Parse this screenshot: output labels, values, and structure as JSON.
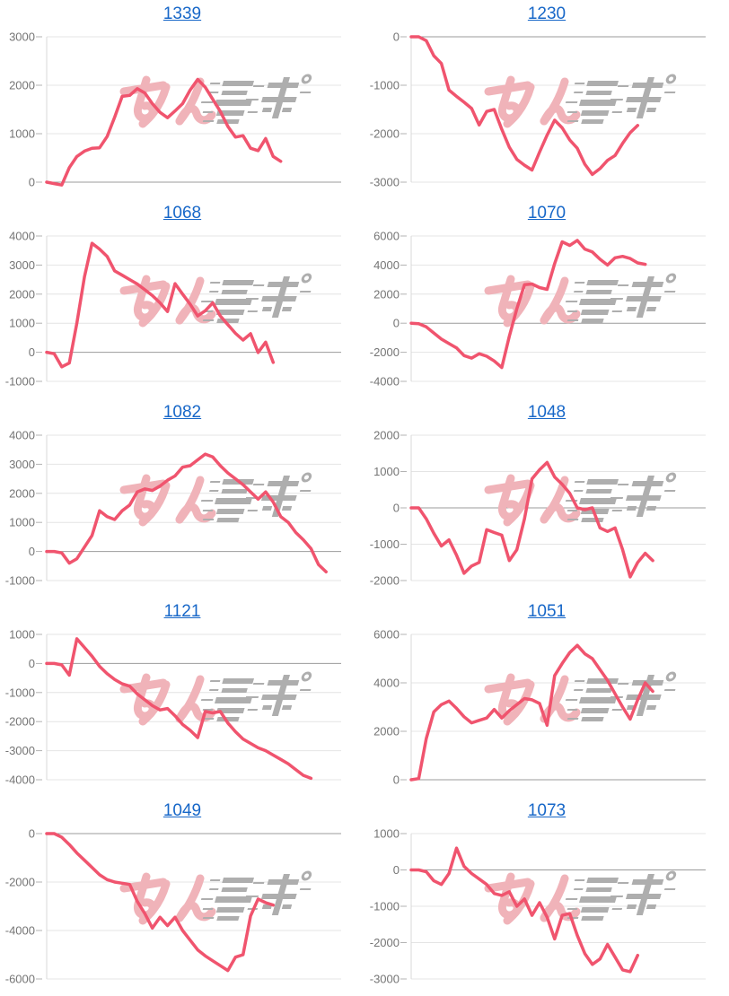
{
  "page": {
    "description": "Grid of 10 daily slot machine payout line graphs, each titled by machine number link",
    "watermark_logo": "minrepo-site-logo"
  },
  "colors": {
    "background": "#ffffff",
    "link": "#1767c8",
    "series_line": "#f0546e",
    "grid_line": "#e4e4e4",
    "zero_line": "#9b9b9b",
    "axis_line": "#d9d9d9",
    "tick_mark": "#b3b3b3",
    "tick_label": "#757575",
    "watermark_pink": "#f0b3b9",
    "watermark_gray": "#aeaeae"
  },
  "layout_hints": {
    "columns": 2,
    "rows": 5,
    "x_days_max": 40,
    "grid_on": true,
    "legend": "none",
    "x_axis_labels": "none"
  },
  "chart_data": [
    {
      "type": "line",
      "title": "1339",
      "ylim": [
        0,
        3000
      ],
      "yticks": [
        0,
        1000,
        2000,
        3000
      ],
      "values": [
        0,
        -30,
        -60,
        300,
        530,
        640,
        700,
        710,
        940,
        1340,
        1770,
        1790,
        1930,
        1840,
        1620,
        1440,
        1330,
        1470,
        1620,
        1900,
        2120,
        1960,
        1710,
        1460,
        1150,
        930,
        960,
        700,
        650,
        900,
        530,
        430
      ]
    },
    {
      "type": "line",
      "title": "1230",
      "ylim": [
        -3000,
        0
      ],
      "yticks": [
        0,
        -1000,
        -2000,
        -3000
      ],
      "values": [
        0,
        0,
        -80,
        -390,
        -550,
        -1100,
        -1230,
        -1350,
        -1480,
        -1820,
        -1540,
        -1500,
        -1910,
        -2280,
        -2530,
        -2650,
        -2750,
        -2380,
        -2030,
        -1720,
        -1880,
        -2130,
        -2300,
        -2630,
        -2840,
        -2720,
        -2550,
        -2450,
        -2200,
        -1980,
        -1830
      ]
    },
    {
      "type": "line",
      "title": "1068",
      "ylim": [
        -1000,
        4000
      ],
      "yticks": [
        -1000,
        0,
        1000,
        2000,
        3000,
        4000
      ],
      "values": [
        0,
        -50,
        -500,
        -370,
        1000,
        2600,
        3750,
        3550,
        3300,
        2800,
        2650,
        2500,
        2350,
        2150,
        1950,
        1700,
        1400,
        2360,
        2000,
        1650,
        1250,
        1430,
        1700,
        1250,
        950,
        650,
        420,
        640,
        -10,
        350,
        -350
      ]
    },
    {
      "type": "line",
      "title": "1070",
      "ylim": [
        -4000,
        6000
      ],
      "yticks": [
        -4000,
        -2000,
        0,
        2000,
        4000,
        6000
      ],
      "values": [
        0,
        -40,
        -250,
        -670,
        -1090,
        -1400,
        -1700,
        -2230,
        -2400,
        -2100,
        -2270,
        -2600,
        -3050,
        -900,
        1000,
        2650,
        2700,
        2450,
        2330,
        4100,
        5600,
        5350,
        5700,
        5100,
        4900,
        4400,
        4000,
        4500,
        4600,
        4450,
        4150,
        4050
      ]
    },
    {
      "type": "line",
      "title": "1082",
      "ylim": [
        -1000,
        4000
      ],
      "yticks": [
        -1000,
        0,
        1000,
        2000,
        3000,
        4000
      ],
      "values": [
        0,
        0,
        -50,
        -400,
        -250,
        150,
        550,
        1400,
        1200,
        1100,
        1400,
        1600,
        2050,
        2150,
        2100,
        2250,
        2450,
        2600,
        2900,
        2950,
        3150,
        3350,
        3250,
        2950,
        2700,
        2500,
        2300,
        2050,
        1800,
        2050,
        1700,
        1200,
        1000,
        650,
        400,
        100,
        -450,
        -700
      ]
    },
    {
      "type": "line",
      "title": "1048",
      "ylim": [
        -2000,
        2000
      ],
      "yticks": [
        -2000,
        -1000,
        0,
        1000,
        2000
      ],
      "values": [
        0,
        0,
        -300,
        -700,
        -1050,
        -880,
        -1300,
        -1800,
        -1600,
        -1500,
        -600,
        -680,
        -750,
        -1450,
        -1150,
        -300,
        800,
        1050,
        1250,
        850,
        650,
        400,
        0,
        -50,
        0,
        -550,
        -650,
        -550,
        -1150,
        -1900,
        -1500,
        -1250,
        -1450
      ]
    },
    {
      "type": "line",
      "title": "1121",
      "ylim": [
        -4000,
        1000
      ],
      "yticks": [
        -4000,
        -3000,
        -2000,
        -1000,
        0,
        1000
      ],
      "values": [
        0,
        0,
        -50,
        -400,
        850,
        550,
        250,
        -100,
        -350,
        -550,
        -700,
        -780,
        -1050,
        -1250,
        -1450,
        -1600,
        -1550,
        -1800,
        -2100,
        -2300,
        -2550,
        -1650,
        -1700,
        -1650,
        -2050,
        -2350,
        -2600,
        -2750,
        -2900,
        -3000,
        -3150,
        -3300,
        -3450,
        -3650,
        -3850,
        -3950
      ]
    },
    {
      "type": "line",
      "title": "1051",
      "ylim": [
        0,
        6000
      ],
      "yticks": [
        0,
        2000,
        4000,
        6000
      ],
      "values": [
        0,
        50,
        1700,
        2800,
        3100,
        3250,
        2950,
        2600,
        2350,
        2450,
        2550,
        2900,
        2550,
        2850,
        3100,
        3350,
        3300,
        3150,
        2250,
        4300,
        4800,
        5250,
        5550,
        5200,
        5000,
        4550,
        4100,
        3550,
        3000,
        2500,
        3300,
        4000,
        3650
      ]
    },
    {
      "type": "line",
      "title": "1049",
      "ylim": [
        -6000,
        0
      ],
      "yticks": [
        0,
        -2000,
        -4000,
        -6000
      ],
      "values": [
        0,
        0,
        -150,
        -450,
        -800,
        -1100,
        -1400,
        -1700,
        -1900,
        -2000,
        -2050,
        -2100,
        -2800,
        -3300,
        -3900,
        -3450,
        -3800,
        -3450,
        -4000,
        -4400,
        -4800,
        -5050,
        -5250,
        -5450,
        -5650,
        -5100,
        -5000,
        -3400,
        -2700,
        -2850,
        -2950
      ]
    },
    {
      "type": "line",
      "title": "1073",
      "ylim": [
        -3000,
        1000
      ],
      "yticks": [
        -3000,
        -2000,
        -1000,
        0,
        1000
      ],
      "values": [
        0,
        0,
        -50,
        -300,
        -400,
        -100,
        600,
        100,
        -100,
        -250,
        -400,
        -650,
        -700,
        -600,
        -1000,
        -800,
        -1250,
        -900,
        -1300,
        -1900,
        -1250,
        -1200,
        -1800,
        -2300,
        -2600,
        -2450,
        -2050,
        -2400,
        -2750,
        -2800,
        -2350
      ]
    }
  ]
}
